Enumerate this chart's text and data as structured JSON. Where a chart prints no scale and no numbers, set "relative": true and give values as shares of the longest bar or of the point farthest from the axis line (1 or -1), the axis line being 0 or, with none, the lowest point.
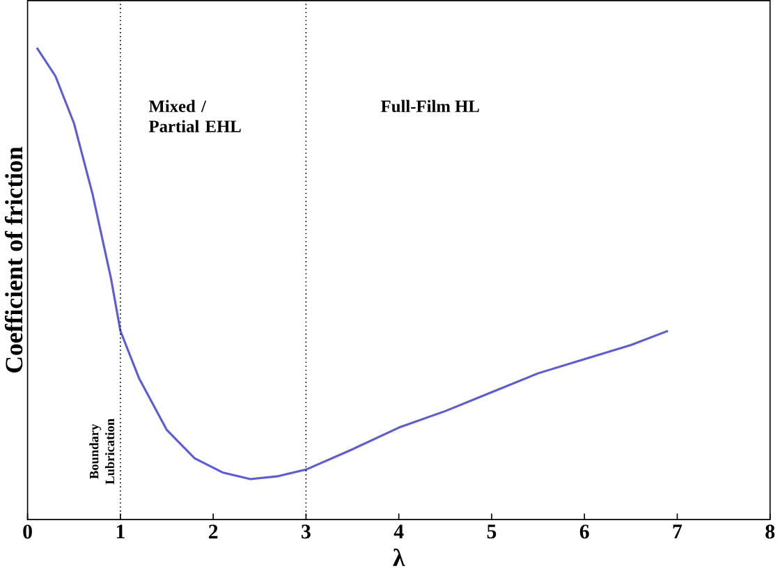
{
  "chart_data": {
    "type": "line",
    "relative": true,
    "xlabel": "λ",
    "ylabel": "Coefficient of friction",
    "xlim": [
      0,
      8
    ],
    "xticks": [
      0,
      1,
      2,
      3,
      4,
      5,
      6,
      7,
      8
    ],
    "marker": "none",
    "line_style": "solid",
    "series": [
      {
        "color": "#5a5ae6",
        "x": [
          0.1,
          0.3,
          0.5,
          0.7,
          0.9,
          1.0,
          1.2,
          1.5,
          1.8,
          2.1,
          2.4,
          2.7,
          3.0,
          3.5,
          4.0,
          4.5,
          5.0,
          5.5,
          6.0,
          6.5,
          6.9
        ],
        "values": [
          1.0,
          0.94,
          0.84,
          0.69,
          0.51,
          0.4,
          0.3,
          0.19,
          0.13,
          0.1,
          0.086,
          0.092,
          0.106,
          0.149,
          0.195,
          0.23,
          0.27,
          0.31,
          0.34,
          0.37,
          0.4
        ]
      }
    ],
    "ref_lines": [
      {
        "axis": "x",
        "value": 1,
        "line_style": "dotted",
        "color": "#000000"
      },
      {
        "axis": "x",
        "value": 3,
        "line_style": "dotted",
        "color": "#000000"
      }
    ],
    "annotations": [
      "Boundary Lubrication",
      "Mixed / Partial EHL",
      "Full-Film HL"
    ]
  }
}
